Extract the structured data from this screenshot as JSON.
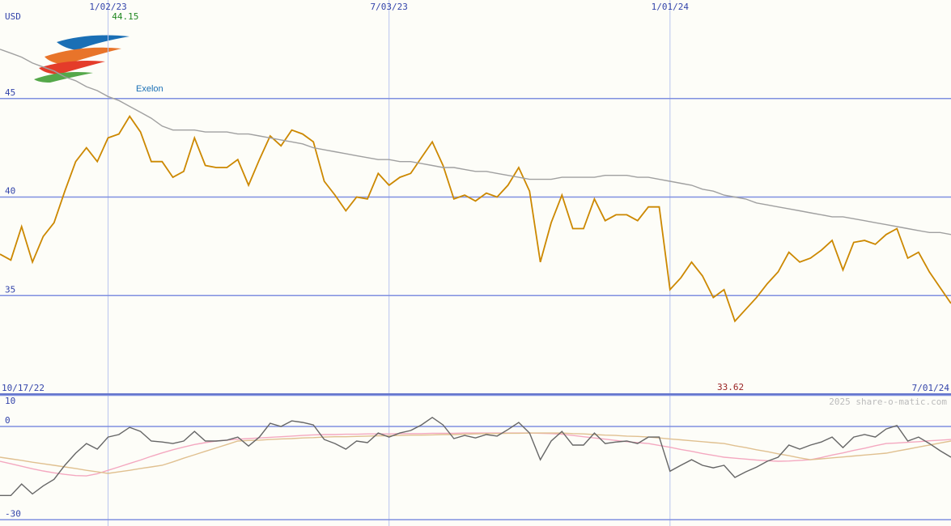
{
  "logo": {
    "text": "Exelon"
  },
  "currency": "USD",
  "watermark": "2025 share-o-matic.com",
  "chart_data": [
    {
      "type": "line",
      "categories": [
        "10/17/22",
        null,
        null,
        null,
        null,
        null,
        null,
        null,
        null,
        null,
        "1/02/23",
        null,
        null,
        null,
        null,
        null,
        null,
        null,
        null,
        null,
        null,
        null,
        null,
        null,
        null,
        null,
        null,
        null,
        null,
        null,
        null,
        null,
        null,
        null,
        null,
        null,
        "7/03/23",
        null,
        null,
        null,
        null,
        null,
        null,
        null,
        null,
        null,
        null,
        null,
        null,
        null,
        null,
        null,
        null,
        null,
        null,
        null,
        null,
        null,
        null,
        null,
        null,
        null,
        "1/01/24",
        null,
        null,
        null,
        null,
        null,
        null,
        null,
        null,
        null,
        null,
        null,
        null,
        null,
        null,
        null,
        null,
        null,
        null,
        null,
        null,
        null,
        null,
        null,
        null,
        null,
        "7/01/24"
      ],
      "ylim": [
        30,
        50
      ],
      "yticks": [
        35,
        40,
        45
      ],
      "grid": true,
      "high": 44.15,
      "low": 33.62,
      "high_color": "#228822",
      "low_color": "#992222",
      "series": [
        {
          "color": "#cc8800",
          "values": [
            37.1,
            36.8,
            38.5,
            36.7,
            38.0,
            38.7,
            40.3,
            41.8,
            42.5,
            41.8,
            43.0,
            43.2,
            44.1,
            43.3,
            41.8,
            41.8,
            41.0,
            41.3,
            43.0,
            41.6,
            41.5,
            41.5,
            41.9,
            40.6,
            41.9,
            43.1,
            42.6,
            43.4,
            43.2,
            42.8,
            40.8,
            40.1,
            39.3,
            40.0,
            39.9,
            41.2,
            40.6,
            41.0,
            41.2,
            42.0,
            42.8,
            41.6,
            39.9,
            40.1,
            39.8,
            40.2,
            40.0,
            40.6,
            41.5,
            40.3,
            36.7,
            38.7,
            40.1,
            38.4,
            38.4,
            39.9,
            38.8,
            39.1,
            39.1,
            38.8,
            39.5,
            39.5,
            35.3,
            35.9,
            36.7,
            36.0,
            34.9,
            35.3,
            33.7,
            34.3,
            34.9,
            35.6,
            36.2,
            37.2,
            36.7,
            36.9,
            37.3,
            37.8,
            36.3,
            37.7,
            37.8,
            37.6,
            38.1,
            38.4,
            36.9,
            37.2,
            36.2,
            35.4,
            34.6
          ]
        },
        {
          "color": "#a0a0a0",
          "values": [
            47.5,
            47.3,
            47.1,
            46.8,
            46.6,
            46.4,
            46.1,
            45.9,
            45.6,
            45.4,
            45.1,
            44.9,
            44.6,
            44.3,
            44.0,
            43.6,
            43.4,
            43.4,
            43.4,
            43.3,
            43.3,
            43.3,
            43.2,
            43.2,
            43.1,
            43.0,
            42.9,
            42.8,
            42.7,
            42.5,
            42.4,
            42.3,
            42.2,
            42.1,
            42.0,
            41.9,
            41.9,
            41.8,
            41.8,
            41.7,
            41.6,
            41.5,
            41.5,
            41.4,
            41.3,
            41.3,
            41.2,
            41.1,
            41.0,
            40.9,
            40.9,
            40.9,
            41.0,
            41.0,
            41.0,
            41.0,
            41.1,
            41.1,
            41.1,
            41.0,
            41.0,
            40.9,
            40.8,
            40.7,
            40.6,
            40.4,
            40.3,
            40.1,
            40.0,
            39.9,
            39.7,
            39.6,
            39.5,
            39.4,
            39.3,
            39.2,
            39.1,
            39.0,
            39.0,
            38.9,
            38.8,
            38.7,
            38.6,
            38.5,
            38.4,
            38.3,
            38.2,
            38.2,
            38.1
          ]
        }
      ]
    },
    {
      "type": "line",
      "ylim": [
        -32,
        10.4
      ],
      "yticks": [
        10,
        0,
        -30
      ],
      "grid": true,
      "series": [
        {
          "color": "#f4a8c0",
          "values": [
            -11.2,
            -12,
            -12.8,
            -13.6,
            -14.3,
            -14.9,
            -15.4,
            -15.8,
            -15.9,
            -15.2,
            -14.1,
            -13,
            -11.9,
            -10.8,
            -9.6,
            -8.5,
            -7.5,
            -6.6,
            -5.8,
            -5.2,
            -4.7,
            -4.4,
            -4.1,
            -3.9,
            -3.7,
            -3.5,
            -3.3,
            -3.1,
            -2.9,
            -2.7,
            -2.6,
            -2.6,
            -2.5,
            -2.5,
            -2.4,
            -2.4,
            -2.4,
            -2.3,
            -2.3,
            -2.3,
            -2.2,
            -2.2,
            -2.2,
            -2.1,
            -2.1,
            -2.1,
            -2.1,
            -2.1,
            -2.1,
            -2.1,
            -2.2,
            -2.3,
            -2.5,
            -2.9,
            -3.3,
            -3.7,
            -4.1,
            -4.5,
            -4.9,
            -5.2,
            -5.5,
            -6.1,
            -6.7,
            -7.4,
            -8.0,
            -8.7,
            -9.3,
            -9.9,
            -10.2,
            -10.5,
            -10.8,
            -11.0,
            -11.2,
            -11.1,
            -10.9,
            -10.7,
            -10.0,
            -9.2,
            -8.5,
            -7.7,
            -7.0,
            -6.2,
            -5.5,
            -5.3,
            -5.1,
            -4.9,
            -4.6,
            -4.4,
            -4.2
          ]
        },
        {
          "color": "#e0c090",
          "values": [
            -9.9,
            -10.4,
            -10.9,
            -11.5,
            -12,
            -12.5,
            -13,
            -13.5,
            -14.1,
            -14.6,
            -15.1,
            -14.6,
            -14.1,
            -13.5,
            -13,
            -12.5,
            -11.4,
            -10.2,
            -9.1,
            -8.0,
            -6.9,
            -5.8,
            -4.7,
            -4.5,
            -4.4,
            -4.2,
            -4.0,
            -3.9,
            -3.7,
            -3.6,
            -3.4,
            -3.3,
            -3.3,
            -3.2,
            -3.1,
            -3.0,
            -3.0,
            -2.9,
            -2.8,
            -2.8,
            -2.7,
            -2.6,
            -2.6,
            -2.5,
            -2.4,
            -2.3,
            -2.3,
            -2.2,
            -2.2,
            -2.1,
            -2.1,
            -2.1,
            -2.1,
            -2.3,
            -2.4,
            -2.6,
            -2.8,
            -2.9,
            -3.1,
            -3.2,
            -3.4,
            -3.7,
            -4.0,
            -4.3,
            -4.6,
            -4.9,
            -5.2,
            -5.5,
            -6.2,
            -6.8,
            -7.5,
            -8.1,
            -8.8,
            -9.4,
            -10.1,
            -10.7,
            -10.4,
            -10.1,
            -9.8,
            -9.5,
            -9.2,
            -8.9,
            -8.6,
            -7.9,
            -7.3,
            -6.6,
            -6.0,
            -5.3,
            -4.7
          ]
        },
        {
          "color": "#666666",
          "values": [
            -22.2,
            -22.2,
            -18.5,
            -21.7,
            -19.1,
            -17.0,
            -12.5,
            -8.6,
            -5.5,
            -7.3,
            -3.4,
            -2.6,
            -0.3,
            -1.6,
            -4.7,
            -5.0,
            -5.5,
            -4.7,
            -1.6,
            -4.7,
            -4.7,
            -4.4,
            -3.4,
            -6.3,
            -3.4,
            1.0,
            0,
            1.8,
            1.3,
            0.5,
            -4.2,
            -5.5,
            -7.3,
            -4.7,
            -5.2,
            -2.1,
            -3.4,
            -2.1,
            -1.3,
            0.5,
            2.9,
            0.5,
            -3.9,
            -2.9,
            -3.7,
            -2.6,
            -3.1,
            -1.0,
            1.3,
            -2.1,
            -10.7,
            -4.7,
            -1.6,
            -6.0,
            -6.0,
            -2.1,
            -5.5,
            -5.0,
            -4.7,
            -5.5,
            -3.4,
            -3.4,
            -14.4,
            -12.5,
            -10.7,
            -12.5,
            -13.3,
            -12.5,
            -16.4,
            -14.6,
            -13.1,
            -11.2,
            -9.9,
            -6.0,
            -7.3,
            -6.0,
            -5.0,
            -3.4,
            -6.8,
            -3.4,
            -2.6,
            -3.4,
            -0.8,
            0.3,
            -4.7,
            -3.4,
            -5.5,
            -7.8,
            -9.9
          ]
        }
      ]
    }
  ]
}
